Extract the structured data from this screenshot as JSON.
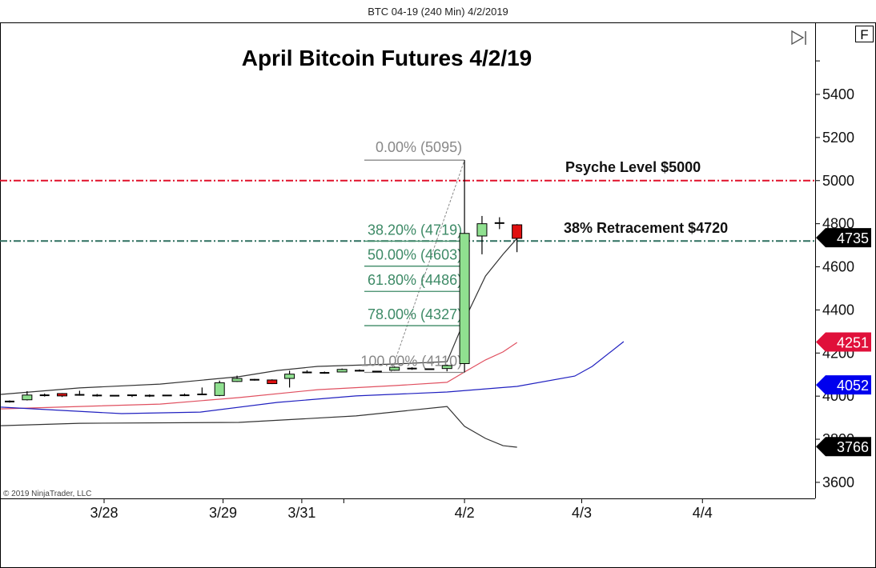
{
  "header": {
    "title": "BTC 04-19 (240 Min)  4/2/2019"
  },
  "chart_data": {
    "type": "candlestick",
    "title": "April Bitcoin Futures 4/2/19",
    "copyright": "© 2019 NinjaTrader, LLC",
    "f_button": "F",
    "ylim": [
      3540,
      5600
    ],
    "yticks": [
      3600,
      3800,
      4000,
      4200,
      4400,
      4600,
      4800,
      5000,
      5200,
      5400
    ],
    "xticks": [
      {
        "label": "3/28",
        "bar": 5.4
      },
      {
        "label": "3/29",
        "bar": 12.2
      },
      {
        "label": "3/31",
        "bar": 16.7
      },
      {
        "label": "",
        "bar": 19.1
      },
      {
        "label": "4/2",
        "bar": 26
      },
      {
        "label": "4/3",
        "bar": 32.7
      },
      {
        "label": "4/4",
        "bar": 39.6
      }
    ],
    "colors": {
      "up": "#90e090",
      "down": "#e01010",
      "psyche": "#e0102a",
      "retrace": "#2e7060",
      "fib_green": "#3d8a66",
      "fib_gray": "#888888",
      "upper_band": "#333333",
      "middle_band": "#e05060",
      "lower_band": "#333333",
      "ema": "#2020c0"
    },
    "candles": [
      {
        "o": 3975,
        "h": 3980,
        "l": 3970,
        "c": 3975
      },
      {
        "o": 3983,
        "h": 4023,
        "l": 3980,
        "c": 4005
      },
      {
        "o": 4004,
        "h": 4012,
        "l": 3998,
        "c": 4004
      },
      {
        "o": 4012,
        "h": 4014,
        "l": 3996,
        "c": 4001
      },
      {
        "o": 4006,
        "h": 4025,
        "l": 4002,
        "c": 4006
      },
      {
        "o": 4003,
        "h": 4010,
        "l": 3998,
        "c": 4003
      },
      {
        "o": 4002,
        "h": 4004,
        "l": 4000,
        "c": 4002
      },
      {
        "o": 4004,
        "h": 4006,
        "l": 3996,
        "c": 4004
      },
      {
        "o": 4002,
        "h": 4008,
        "l": 3996,
        "c": 4002
      },
      {
        "o": 4003,
        "h": 4005,
        "l": 4001,
        "c": 4003
      },
      {
        "o": 4004,
        "h": 4012,
        "l": 4000,
        "c": 4004
      },
      {
        "o": 4008,
        "h": 4040,
        "l": 4005,
        "c": 4008
      },
      {
        "o": 4003,
        "h": 4072,
        "l": 4000,
        "c": 4062
      },
      {
        "o": 4068,
        "h": 4095,
        "l": 4066,
        "c": 4082
      },
      {
        "o": 4076,
        "h": 4080,
        "l": 4072,
        "c": 4076
      },
      {
        "o": 4075,
        "h": 4078,
        "l": 4056,
        "c": 4058
      },
      {
        "o": 4082,
        "h": 4118,
        "l": 4040,
        "c": 4102
      },
      {
        "o": 4110,
        "h": 4120,
        "l": 4106,
        "c": 4110
      },
      {
        "o": 4108,
        "h": 4114,
        "l": 4104,
        "c": 4108
      },
      {
        "o": 4112,
        "h": 4128,
        "l": 4110,
        "c": 4124
      },
      {
        "o": 4118,
        "h": 4124,
        "l": 4114,
        "c": 4118
      },
      {
        "o": 4114,
        "h": 4116,
        "l": 4112,
        "c": 4114
      },
      {
        "o": 4120,
        "h": 4138,
        "l": 4118,
        "c": 4134
      },
      {
        "o": 4128,
        "h": 4134,
        "l": 4122,
        "c": 4128
      },
      {
        "o": 4125,
        "h": 4127,
        "l": 4123,
        "c": 4125
      },
      {
        "o": 4128,
        "h": 4146,
        "l": 4115,
        "c": 4142
      },
      {
        "o": 4151,
        "h": 5095,
        "l": 4110,
        "c": 4755
      },
      {
        "o": 4743,
        "h": 4836,
        "l": 4658,
        "c": 4800
      },
      {
        "o": 4803,
        "h": 4830,
        "l": 4775,
        "c": 4803
      },
      {
        "o": 4795,
        "h": 4798,
        "l": 4668,
        "c": 4732
      }
    ],
    "indicators": [
      {
        "key": "upper_band",
        "points": [
          [
            -0.5,
            4008
          ],
          [
            4,
            4038
          ],
          [
            8.6,
            4056
          ],
          [
            13.1,
            4090
          ],
          [
            15.3,
            4119
          ],
          [
            17.6,
            4138
          ],
          [
            22,
            4149
          ],
          [
            25,
            4160
          ],
          [
            26,
            4353
          ],
          [
            27.2,
            4557
          ],
          [
            28.2,
            4658
          ],
          [
            29,
            4732
          ]
        ]
      },
      {
        "key": "middle_band",
        "points": [
          [
            -0.5,
            3941
          ],
          [
            4,
            3952
          ],
          [
            8.6,
            3963
          ],
          [
            13.1,
            3993
          ],
          [
            17.6,
            4030
          ],
          [
            22,
            4049
          ],
          [
            25,
            4064
          ],
          [
            26,
            4112
          ],
          [
            27.2,
            4168
          ],
          [
            28.2,
            4205
          ],
          [
            29,
            4249
          ]
        ]
      },
      {
        "key": "ema",
        "points": [
          [
            -0.5,
            3949
          ],
          [
            6.4,
            3919
          ],
          [
            10.9,
            3926
          ],
          [
            15.3,
            3971
          ],
          [
            19.8,
            4001
          ],
          [
            25,
            4019
          ],
          [
            29,
            4045
          ],
          [
            32.3,
            4093
          ],
          [
            33.3,
            4138
          ],
          [
            35.1,
            4253
          ]
        ]
      },
      {
        "key": "lower_band",
        "points": [
          [
            -0.5,
            3863
          ],
          [
            4,
            3874
          ],
          [
            13.1,
            3878
          ],
          [
            19.8,
            3908
          ],
          [
            25,
            3952
          ],
          [
            26,
            3860
          ],
          [
            27.2,
            3804
          ],
          [
            28.2,
            3770
          ],
          [
            29,
            3763
          ]
        ]
      }
    ],
    "price_tags": [
      {
        "value": "4735",
        "price": 4735,
        "color": "#000000"
      },
      {
        "value": "4251",
        "price": 4251,
        "color": "#e0103a"
      },
      {
        "value": "4052",
        "price": 4052,
        "color": "#0000ee"
      },
      {
        "value": "3766",
        "price": 3766,
        "color": "#000000"
      }
    ],
    "fib": {
      "from_bar": 25,
      "to_bar": 26,
      "low": 4110,
      "high": 5095,
      "levels": [
        {
          "label": "0.00% (5095)",
          "price": 5095,
          "tone": "gray"
        },
        {
          "label": "38.20% (4719)",
          "price": 4719,
          "tone": "green"
        },
        {
          "label": "50.00% (4603)",
          "price": 4603,
          "tone": "green"
        },
        {
          "label": "61.80% (4486)",
          "price": 4486,
          "tone": "green"
        },
        {
          "label": "78.00% (4327)",
          "price": 4327,
          "tone": "green"
        },
        {
          "label": "100.00% (4110)",
          "price": 4110,
          "tone": "gray"
        }
      ]
    },
    "hlines": [
      {
        "label": "Psyche Level $5000",
        "price": 5000,
        "key": "psyche"
      },
      {
        "label": "38% Retracement $4720",
        "price": 4720,
        "key": "retrace"
      }
    ]
  }
}
